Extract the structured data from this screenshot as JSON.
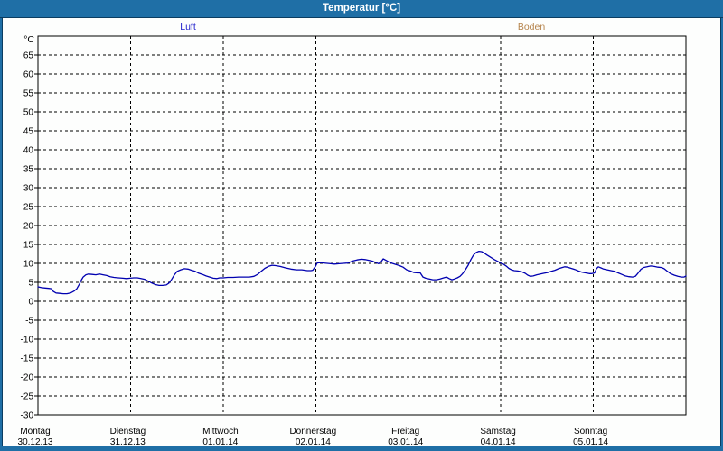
{
  "window": {
    "title": "Temperatur [°C]"
  },
  "colors": {
    "titlebar": "#1f6fa6",
    "titlebar_text": "#ffffff",
    "window_edge": "#0b3d61",
    "luft": "#2222cc",
    "boden": "#b5834b",
    "grid": "#000000"
  },
  "legend": {
    "series": [
      {
        "label": "Luft",
        "color": "#2222cc"
      },
      {
        "label": "Boden",
        "color": "#b5834b"
      }
    ]
  },
  "axes": {
    "y_unit": "°C",
    "y_ticks": [
      65,
      60,
      55,
      50,
      45,
      40,
      35,
      30,
      25,
      20,
      15,
      10,
      5,
      0,
      -5,
      -10,
      -15,
      -20,
      -25,
      -30
    ],
    "x_days": [
      {
        "name": "Montag",
        "date": "30.12.13"
      },
      {
        "name": "Dienstag",
        "date": "31.12.13"
      },
      {
        "name": "Mittwoch",
        "date": "01.01.14"
      },
      {
        "name": "Donnerstag",
        "date": "02.01.14"
      },
      {
        "name": "Freitag",
        "date": "03.01.14"
      },
      {
        "name": "Samstag",
        "date": "04.01.14"
      },
      {
        "name": "Sonntag",
        "date": "05.01.14"
      }
    ]
  },
  "chart_data": {
    "type": "line",
    "title": "Temperatur [°C]",
    "ylabel": "°C",
    "ylim": [
      -30,
      70
    ],
    "ytick_step": 5,
    "grid": true,
    "x_axis": "days, Montag 30.12.13 bis Sonntag 05.01.14 (x in Tagen ab 30.12.13 00:00)",
    "series": [
      {
        "name": "Luft",
        "color": "#0000b0",
        "visible": true,
        "x_days": [
          0.0,
          0.039,
          0.078,
          0.117,
          0.146,
          0.166,
          0.195,
          0.234,
          0.273,
          0.312,
          0.351,
          0.39,
          0.42,
          0.449,
          0.469,
          0.488,
          0.517,
          0.547,
          0.586,
          0.625,
          0.664,
          0.703,
          0.742,
          0.781,
          0.82,
          0.869,
          0.918,
          0.957,
          0.996,
          1.035,
          1.074,
          1.113,
          1.152,
          1.191,
          1.23,
          1.269,
          1.308,
          1.347,
          1.386,
          1.416,
          1.445,
          1.474,
          1.503,
          1.543,
          1.582,
          1.621,
          1.66,
          1.699,
          1.738,
          1.777,
          1.816,
          1.855,
          1.894,
          1.933,
          1.962,
          2.001,
          2.05,
          2.109,
          2.167,
          2.226,
          2.284,
          2.333,
          2.372,
          2.411,
          2.45,
          2.489,
          2.528,
          2.567,
          2.616,
          2.675,
          2.733,
          2.792,
          2.851,
          2.909,
          2.948,
          2.968,
          2.997,
          3.017,
          3.046,
          3.085,
          3.124,
          3.163,
          3.202,
          3.251,
          3.3,
          3.349,
          3.397,
          3.446,
          3.495,
          3.534,
          3.573,
          3.612,
          3.651,
          3.681,
          3.71,
          3.729,
          3.759,
          3.788,
          3.827,
          3.866,
          3.905,
          3.944,
          3.983,
          4.032,
          4.061,
          4.1,
          4.13,
          4.159,
          4.188,
          4.227,
          4.266,
          4.305,
          4.344,
          4.383,
          4.413,
          4.442,
          4.471,
          4.5,
          4.53,
          4.559,
          4.588,
          4.617,
          4.647,
          4.676,
          4.705,
          4.735,
          4.764,
          4.793,
          4.822,
          4.852,
          4.891,
          4.93,
          4.969,
          4.998,
          5.027,
          5.057,
          5.086,
          5.115,
          5.145,
          5.184,
          5.223,
          5.262,
          5.291,
          5.32,
          5.35,
          5.389,
          5.428,
          5.467,
          5.506,
          5.545,
          5.584,
          5.623,
          5.662,
          5.692,
          5.721,
          5.76,
          5.799,
          5.838,
          5.877,
          5.916,
          5.955,
          5.985,
          6.014,
          6.033,
          6.053,
          6.082,
          6.111,
          6.15,
          6.19,
          6.229,
          6.268,
          6.307,
          6.346,
          6.385,
          6.424,
          6.453,
          6.482,
          6.512,
          6.541,
          6.58,
          6.619,
          6.658,
          6.697,
          6.736,
          6.765,
          6.795,
          6.834,
          6.873,
          6.912,
          6.951,
          6.98,
          7.0
        ],
        "temps_c": [
          3.8,
          3.6,
          3.5,
          3.4,
          3.3,
          2.6,
          2.2,
          2.1,
          2.0,
          2.0,
          2.2,
          2.7,
          3.3,
          4.6,
          5.6,
          6.4,
          7.0,
          7.2,
          7.1,
          7.0,
          7.2,
          7.0,
          6.8,
          6.5,
          6.3,
          6.2,
          6.1,
          6.0,
          6.1,
          6.2,
          6.2,
          6.0,
          5.8,
          5.3,
          4.8,
          4.4,
          4.2,
          4.2,
          4.3,
          4.8,
          5.8,
          7.0,
          7.9,
          8.3,
          8.6,
          8.5,
          8.2,
          7.9,
          7.4,
          7.1,
          6.7,
          6.4,
          6.1,
          6.0,
          6.2,
          6.2,
          6.3,
          6.3,
          6.4,
          6.4,
          6.4,
          6.6,
          7.1,
          7.9,
          8.7,
          9.2,
          9.5,
          9.4,
          9.2,
          8.8,
          8.5,
          8.3,
          8.3,
          8.1,
          8.1,
          8.2,
          9.2,
          10.1,
          10.2,
          10.1,
          10.0,
          9.9,
          9.8,
          9.9,
          10.0,
          10.1,
          10.6,
          10.9,
          11.1,
          11.0,
          10.8,
          10.6,
          10.2,
          9.9,
          10.5,
          11.2,
          10.8,
          10.4,
          10.0,
          9.7,
          9.4,
          9.0,
          8.3,
          7.9,
          7.6,
          7.5,
          7.5,
          6.4,
          6.1,
          5.9,
          5.7,
          5.7,
          5.9,
          6.2,
          6.4,
          6.0,
          5.7,
          5.9,
          6.2,
          6.6,
          7.3,
          8.3,
          9.5,
          11.0,
          12.2,
          12.9,
          13.2,
          13.1,
          12.7,
          12.2,
          11.6,
          11.0,
          10.5,
          10.1,
          9.8,
          9.3,
          8.7,
          8.3,
          8.1,
          8.0,
          7.8,
          7.4,
          6.9,
          6.6,
          6.7,
          7.0,
          7.2,
          7.4,
          7.6,
          7.9,
          8.2,
          8.6,
          8.9,
          9.1,
          9.0,
          8.7,
          8.4,
          8.0,
          7.7,
          7.5,
          7.3,
          7.3,
          7.5,
          8.6,
          9.1,
          8.8,
          8.5,
          8.3,
          8.1,
          7.9,
          7.5,
          7.1,
          6.7,
          6.5,
          6.4,
          6.6,
          7.4,
          8.4,
          8.9,
          9.1,
          9.3,
          9.2,
          9.0,
          8.9,
          8.6,
          8.0,
          7.3,
          6.9,
          6.6,
          6.4,
          6.4,
          6.7
        ]
      },
      {
        "name": "Boden",
        "color": "#b5834b",
        "visible": false,
        "x_days": [],
        "temps_c": []
      }
    ]
  }
}
